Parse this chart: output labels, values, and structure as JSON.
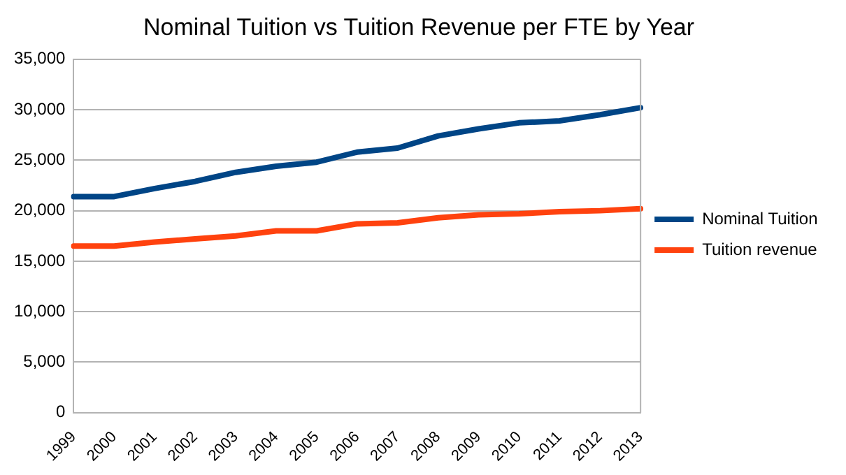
{
  "chart_data": {
    "type": "line",
    "title": "Nominal Tuition vs Tuition Revenue per FTE by Year",
    "categories": [
      "1999",
      "2000",
      "2001",
      "2002",
      "2003",
      "2004",
      "2005",
      "2006",
      "2007",
      "2008",
      "2009",
      "2010",
      "2011",
      "2012",
      "2013"
    ],
    "series": [
      {
        "name": "Nominal Tuition",
        "color": "#004586",
        "values": [
          21400,
          21400,
          22200,
          22900,
          23800,
          24400,
          24800,
          25800,
          26200,
          27400,
          28100,
          28700,
          28900,
          29500,
          30200
        ]
      },
      {
        "name": "Tuition revenue",
        "color": "#ff420e",
        "values": [
          16500,
          16500,
          16900,
          17200,
          17500,
          18000,
          18000,
          18700,
          18800,
          19300,
          19600,
          19700,
          19900,
          20000,
          20200
        ]
      }
    ],
    "ylim": [
      0,
      35000
    ],
    "yticks": [
      0,
      {
        "value": 5000,
        "label": "5,000"
      },
      {
        "value": 10000,
        "label": "10,000"
      },
      {
        "value": 15000,
        "label": "15,000"
      },
      {
        "value": 20000,
        "label": "20,000"
      },
      {
        "value": 25000,
        "label": "25,000"
      },
      {
        "value": 30000,
        "label": "30,000"
      },
      {
        "value": 35000,
        "label": "35,000"
      }
    ],
    "grid": "y",
    "legend": "right",
    "marker": "none",
    "line_style": "solid"
  }
}
